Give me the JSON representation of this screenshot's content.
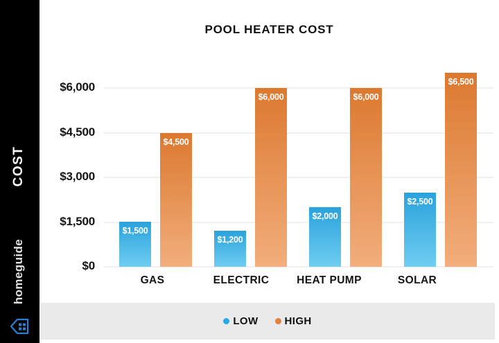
{
  "page": {
    "background": "#ffffff"
  },
  "sidebar": {
    "background": "#000000",
    "cost_label": "COST",
    "brand": "homeguide",
    "brand_color": "#2a7fd1"
  },
  "chart_data": {
    "type": "bar",
    "title": "POOL HEATER COST",
    "categories": [
      "GAS",
      "ELECTRIC",
      "HEAT PUMP",
      "SOLAR"
    ],
    "series": [
      {
        "name": "LOW",
        "values": [
          1500,
          1200,
          2000,
          2500
        ],
        "value_labels": [
          "$1,500",
          "$1,200",
          "$2,000",
          "$2,500"
        ],
        "color_top": "#2aa2dc",
        "color_bottom": "#6fcdf1"
      },
      {
        "name": "HIGH",
        "values": [
          4500,
          6000,
          6000,
          6500
        ],
        "value_labels": [
          "$4,500",
          "$6,000",
          "$6,000",
          "$6,500"
        ],
        "color_top": "#dc7930",
        "color_bottom": "#f2ae7c"
      }
    ],
    "y_ticks": [
      {
        "value": 0,
        "label": "$0"
      },
      {
        "value": 1500,
        "label": "$1,500"
      },
      {
        "value": 3000,
        "label": "$3,000"
      },
      {
        "value": 4500,
        "label": "$4,500"
      },
      {
        "value": 6000,
        "label": "$6,000"
      }
    ],
    "ylim": [
      0,
      6500
    ],
    "ylabel": "COST",
    "grid": true,
    "legend_position": "bottom"
  },
  "legend": {
    "background": "#eaeaea",
    "items": [
      {
        "label": "LOW",
        "color": "#29a9e1"
      },
      {
        "label": "HIGH",
        "color": "#e0803c"
      }
    ]
  }
}
